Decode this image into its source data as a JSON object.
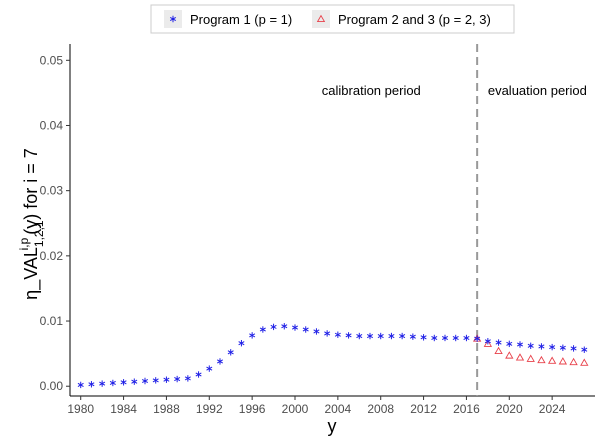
{
  "chart_data": {
    "type": "scatter",
    "xlabel": "y",
    "ylabel": {
      "prefix": "η_VAL",
      "superscript": "i,p",
      "subscript": "1,2,1",
      "suffix": "(y)  for i = 7"
    },
    "xlim": [
      1979,
      2028
    ],
    "ylim": [
      -0.0015,
      0.0525
    ],
    "x_ticks": [
      1980,
      1984,
      1988,
      1992,
      1996,
      2000,
      2004,
      2008,
      2012,
      2016,
      2020,
      2024
    ],
    "x_tick_labels": [
      "1980",
      "1984",
      "1988",
      "1992",
      "1996",
      "2000",
      "2004",
      "2008",
      "2012",
      "2016",
      "2020",
      "2024"
    ],
    "y_ticks": [
      0,
      0.01,
      0.02,
      0.03,
      0.04,
      0.05
    ],
    "y_tick_labels": [
      "0.00",
      "0.01",
      "0.02",
      "0.03",
      "0.04",
      "0.05"
    ],
    "grid": false,
    "legend_position": "top",
    "vline": {
      "x": 2017,
      "style": "dashed",
      "color": "#999999"
    },
    "annotations": [
      {
        "text": "calibration period",
        "x": 2002.5,
        "y": 0.0447,
        "anchor": "start"
      },
      {
        "text": "evaluation period",
        "x": 2018,
        "y": 0.0447,
        "anchor": "start"
      }
    ],
    "series": [
      {
        "name": "Program 1 (p = 1)",
        "marker": "asterisk",
        "color": "#1f1fe6",
        "x": [
          1980,
          1981,
          1982,
          1983,
          1984,
          1985,
          1986,
          1987,
          1988,
          1989,
          1990,
          1991,
          1992,
          1993,
          1994,
          1995,
          1996,
          1997,
          1998,
          1999,
          2000,
          2001,
          2002,
          2003,
          2004,
          2005,
          2006,
          2007,
          2008,
          2009,
          2010,
          2011,
          2012,
          2013,
          2014,
          2015,
          2016,
          2017,
          2018,
          2019,
          2020,
          2021,
          2022,
          2023,
          2024,
          2025,
          2026,
          2027
        ],
        "y": [
          0.0002,
          0.0003,
          0.0004,
          0.0005,
          0.0006,
          0.0007,
          0.0008,
          0.0009,
          0.001,
          0.0011,
          0.0012,
          0.0018,
          0.0027,
          0.0038,
          0.0052,
          0.0066,
          0.0078,
          0.0087,
          0.0091,
          0.0092,
          0.009,
          0.0087,
          0.0084,
          0.0081,
          0.0079,
          0.0078,
          0.0077,
          0.0077,
          0.0077,
          0.0077,
          0.0077,
          0.0076,
          0.0075,
          0.0074,
          0.0074,
          0.0074,
          0.0074,
          0.0073,
          0.0069,
          0.0067,
          0.0065,
          0.0064,
          0.0062,
          0.0061,
          0.006,
          0.0059,
          0.0058,
          0.0056
        ]
      },
      {
        "name": "Program 2 and 3 (p = 2, 3)",
        "marker": "triangle",
        "color": "#e8404a",
        "x": [
          2017,
          2018,
          2019,
          2020,
          2021,
          2022,
          2023,
          2024,
          2025,
          2026,
          2027
        ],
        "y": [
          0.0073,
          0.0065,
          0.0054,
          0.0047,
          0.0044,
          0.0042,
          0.004,
          0.0039,
          0.0038,
          0.0037,
          0.0036
        ]
      }
    ]
  }
}
